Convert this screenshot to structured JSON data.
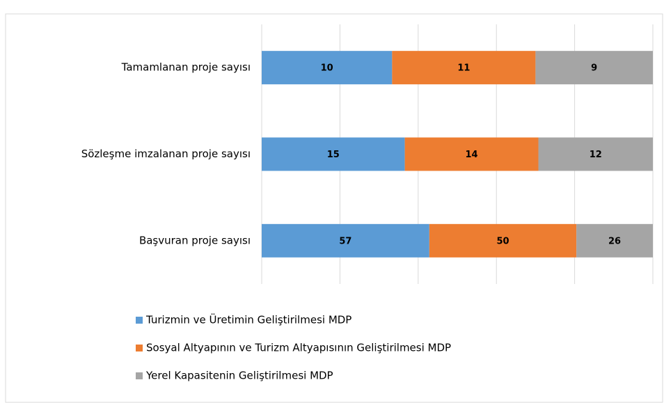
{
  "chart_data": {
    "type": "bar",
    "orientation": "horizontal",
    "stacked": "percent",
    "categories": [
      "Tamamlanan proje sayısı",
      "Sözleşme imzalanan proje sayısı",
      "Başvuran proje sayısı"
    ],
    "series": [
      {
        "name": "Turizmin ve Üretimin Geliştirilmesi MDP",
        "color": "#5b9bd5",
        "values": [
          10,
          15,
          57
        ]
      },
      {
        "name": "Sosyal Altyapının ve Turizm Altyapısının Geliştirilmesi MDP",
        "color": "#ed7d31",
        "values": [
          11,
          14,
          50
        ]
      },
      {
        "name": "Yerel Kapasitenin Geliştirilmesi MDP",
        "color": "#a5a5a5",
        "values": [
          9,
          12,
          26
        ]
      }
    ],
    "xlim": [
      0,
      100
    ],
    "xticks": [
      0,
      20,
      40,
      60,
      80,
      100
    ],
    "grid": true,
    "legend": "bottom"
  }
}
